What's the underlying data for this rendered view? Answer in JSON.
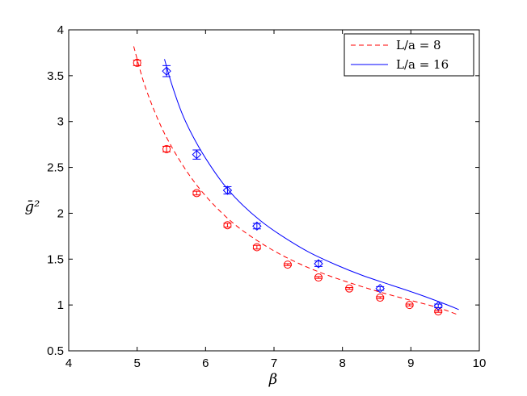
{
  "chart_data": {
    "type": "scatter",
    "xlabel": "β",
    "ylabel": "ḡ²",
    "xlim": [
      4,
      10
    ],
    "ylim": [
      0.5,
      4
    ],
    "xticks": [
      "4",
      "5",
      "6",
      "7",
      "8",
      "9",
      "10"
    ],
    "yticks": [
      "0.5",
      "1",
      "1.5",
      "2",
      "2.5",
      "3",
      "3.5",
      "4"
    ],
    "grid": false,
    "legend_position": "top-right",
    "series": [
      {
        "name": "L/a = 8",
        "color": "#ff0000",
        "marker": "circle",
        "line_style": "dashed",
        "x": [
          5.0,
          5.43,
          5.87,
          6.32,
          6.75,
          7.2,
          7.65,
          8.1,
          8.55,
          8.98,
          9.4
        ],
        "y": [
          3.64,
          2.7,
          2.22,
          1.87,
          1.63,
          1.44,
          1.3,
          1.18,
          1.08,
          1.0,
          0.93
        ],
        "errors": [
          0.03,
          0.03,
          0.02,
          0.02,
          0.02,
          0.01,
          0.01,
          0.01,
          0.01,
          0.01,
          0.01
        ],
        "fit": {
          "x": [
            4.95,
            5.1,
            5.3,
            5.5,
            5.75,
            6.0,
            6.3,
            6.6,
            7.0,
            7.4,
            7.8,
            8.2,
            8.6,
            9.0,
            9.4,
            9.7
          ],
          "y": [
            3.82,
            3.42,
            3.03,
            2.73,
            2.43,
            2.19,
            1.96,
            1.78,
            1.59,
            1.44,
            1.32,
            1.22,
            1.13,
            1.05,
            0.97,
            0.89
          ]
        }
      },
      {
        "name": "L/a = 16",
        "color": "#0000ff",
        "marker": "diamond",
        "line_style": "solid",
        "x": [
          5.43,
          5.87,
          6.32,
          6.75,
          7.65,
          8.55,
          9.4
        ],
        "y": [
          3.55,
          2.64,
          2.25,
          1.86,
          1.45,
          1.18,
          0.99
        ],
        "errors": [
          0.06,
          0.05,
          0.04,
          0.03,
          0.03,
          0.02,
          0.02
        ],
        "fit": {
          "x": [
            5.4,
            5.5,
            5.65,
            5.8,
            6.0,
            6.25,
            6.5,
            6.8,
            7.1,
            7.5,
            7.9,
            8.3,
            8.7,
            9.1,
            9.5,
            9.7
          ],
          "y": [
            3.68,
            3.42,
            3.1,
            2.86,
            2.6,
            2.33,
            2.12,
            1.92,
            1.76,
            1.58,
            1.44,
            1.32,
            1.22,
            1.12,
            1.01,
            0.95
          ]
        }
      }
    ]
  }
}
